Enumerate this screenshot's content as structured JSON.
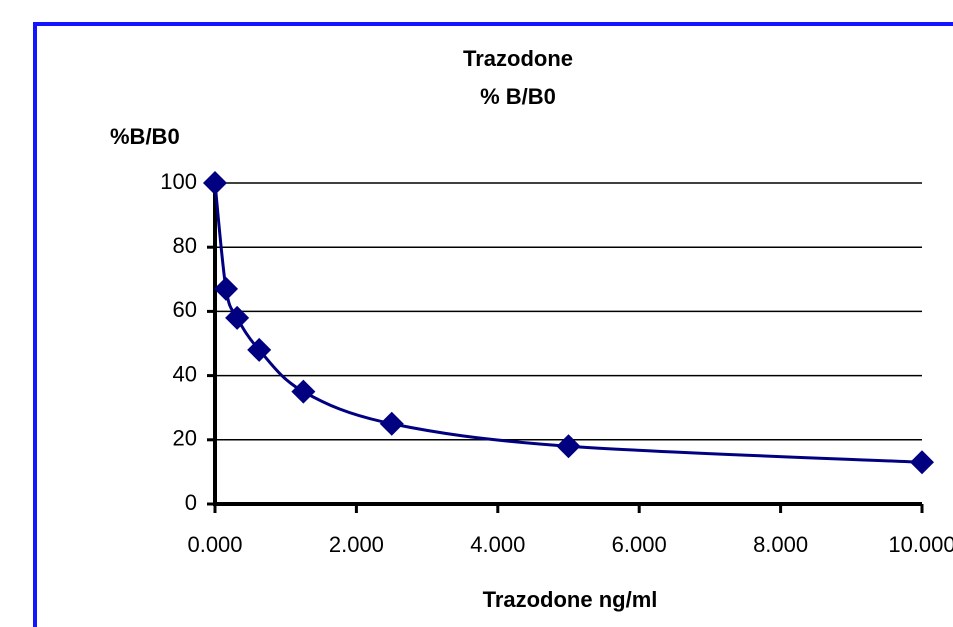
{
  "chart_data": {
    "type": "line",
    "title": "Trazodone",
    "subtitle": "% B/B0",
    "y_label": "%B/B0",
    "x_label": "Trazodone ng/ml",
    "x": [
      0,
      0.156,
      0.313,
      0.625,
      1.25,
      2.5,
      5,
      10
    ],
    "series": [
      {
        "name": "%B/B0",
        "color": "#000080",
        "values": [
          100,
          67,
          58,
          48,
          35,
          25,
          18,
          13
        ]
      }
    ],
    "xlim": [
      0,
      10
    ],
    "xticks": [
      {
        "value": 0,
        "label": "0.000"
      },
      {
        "value": 2,
        "label": "2.000"
      },
      {
        "value": 4,
        "label": "4.000"
      },
      {
        "value": 6,
        "label": "6.000"
      },
      {
        "value": 8,
        "label": "8.000"
      },
      {
        "value": 10,
        "label": "10.000"
      }
    ],
    "ylim": [
      0,
      100
    ],
    "yticks": [
      0,
      20,
      40,
      60,
      80,
      100
    ],
    "grid": true
  }
}
